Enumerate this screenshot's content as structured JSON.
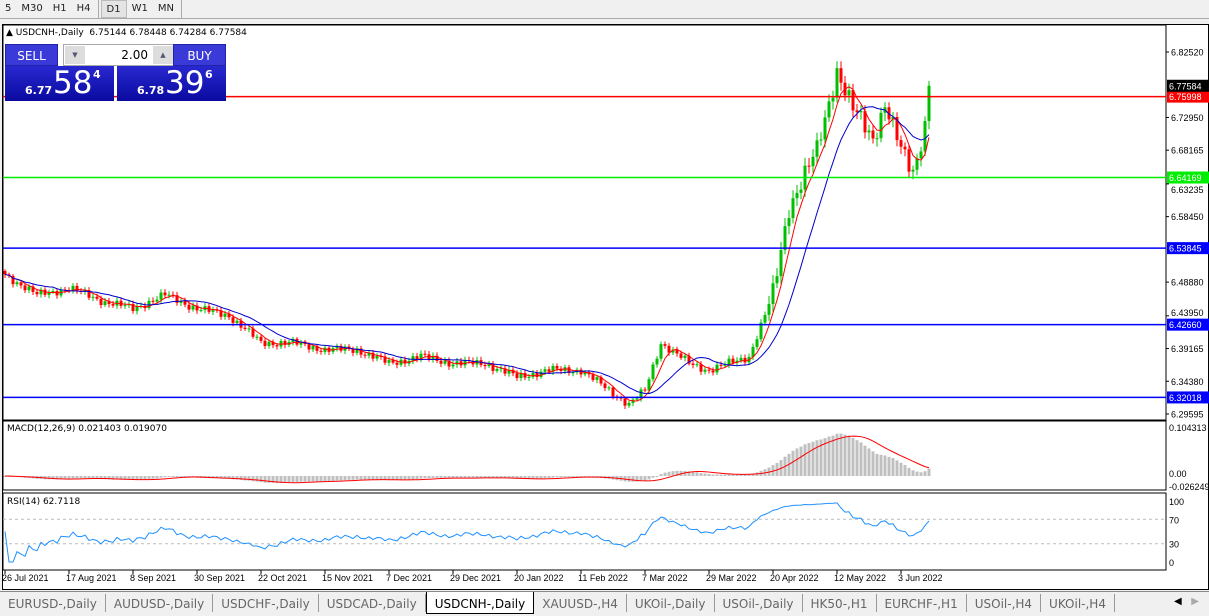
{
  "toolbar": {
    "timeframes": [
      "5",
      "M30",
      "H1",
      "H4",
      "D1",
      "W1",
      "MN"
    ],
    "active": "D1"
  },
  "header": {
    "symbol_line": "USDCNH-,Daily  6.75144 6.78448 6.74284 6.77584"
  },
  "trade_panel": {
    "sell_label": "SELL",
    "buy_label": "BUY",
    "lot": "2.00",
    "sell_small": "6.77",
    "sell_big": "58",
    "sell_sup": "4",
    "buy_small": "6.78",
    "buy_big": "39",
    "buy_sup": "6"
  },
  "price_axis": {
    "ticks": [
      "6.82520",
      "6.72950",
      "6.68165",
      "6.63235",
      "6.58450",
      "6.48880",
      "6.43950",
      "6.39165",
      "6.34380",
      "6.29595"
    ],
    "current_price": "6.77584"
  },
  "hlines": [
    {
      "price": "6.75998",
      "color": "#ff0000"
    },
    {
      "price": "6.64169",
      "color": "#00ee00"
    },
    {
      "price": "6.53845",
      "color": "#0000ff"
    },
    {
      "price": "6.42660",
      "color": "#0000ff"
    },
    {
      "price": "6.32018",
      "color": "#0000ff"
    }
  ],
  "macd": {
    "label": "MACD(12,26,9) 0.021403 0.019070",
    "axis": [
      "0.104313",
      "0.00",
      "-0.026249"
    ]
  },
  "rsi": {
    "label": "RSI(14) 62.7118",
    "axis": [
      "100",
      "70",
      "30",
      "0"
    ]
  },
  "time_axis": [
    "26 Jul 2021",
    "17 Aug 2021",
    "8 Sep 2021",
    "30 Sep 2021",
    "22 Oct 2021",
    "15 Nov 2021",
    "7 Dec 2021",
    "29 Dec 2021",
    "20 Jan 2022",
    "11 Feb 2022",
    "7 Mar 2022",
    "29 Mar 2022",
    "20 Apr 2022",
    "12 May 2022",
    "3 Jun 2022"
  ],
  "tabs": [
    "EURUSD-,Daily",
    "AUDUSD-,Daily",
    "USDCHF-,Daily",
    "USDCAD-,Daily",
    "USDCNH-,Daily",
    "XAUUSD-,H4",
    "UKOil-,Daily",
    "USOil-,Daily",
    "HK50-,H1",
    "EURCHF-,H1",
    "USOil-,H4",
    "UKOil-,H4"
  ],
  "active_tab": "USDCNH-,Daily",
  "colors": {
    "bull": "#00c000",
    "bear": "#ff0000",
    "fast_ma": "#ff0000",
    "slow_ma": "#0000cc",
    "rsi": "#1e90ff",
    "macd_hist": "#c0c0c0",
    "macd_signal": "#ff0000"
  },
  "chart_data": {
    "type": "candlestick",
    "symbol": "USDCNH",
    "timeframe": "Daily",
    "closes": [
      [
        "2021-07-26",
        6.5
      ],
      [
        "2021-08-05",
        6.47
      ],
      [
        "2021-08-17",
        6.48
      ],
      [
        "2021-08-30",
        6.46
      ],
      [
        "2021-09-08",
        6.45
      ],
      [
        "2021-09-20",
        6.47
      ],
      [
        "2021-09-30",
        6.45
      ],
      [
        "2021-10-12",
        6.44
      ],
      [
        "2021-10-22",
        6.4
      ],
      [
        "2021-11-03",
        6.4
      ],
      [
        "2021-11-15",
        6.39
      ],
      [
        "2021-11-25",
        6.39
      ],
      [
        "2021-12-07",
        6.37
      ],
      [
        "2021-12-17",
        6.38
      ],
      [
        "2021-12-29",
        6.37
      ],
      [
        "2022-01-10",
        6.37
      ],
      [
        "2022-01-20",
        6.35
      ],
      [
        "2022-02-01",
        6.36
      ],
      [
        "2022-02-11",
        6.36
      ],
      [
        "2022-03-01",
        6.31
      ],
      [
        "2022-03-07",
        6.33
      ],
      [
        "2022-03-11",
        6.4
      ],
      [
        "2022-03-22",
        6.37
      ],
      [
        "2022-03-29",
        6.36
      ],
      [
        "2022-04-12",
        6.38
      ],
      [
        "2022-04-20",
        6.47
      ],
      [
        "2022-04-26",
        6.6
      ],
      [
        "2022-05-05",
        6.68
      ],
      [
        "2022-05-12",
        6.8
      ],
      [
        "2022-05-18",
        6.74
      ],
      [
        "2022-05-25",
        6.7
      ],
      [
        "2022-05-30",
        6.75
      ],
      [
        "2022-06-03",
        6.68
      ],
      [
        "2022-06-08",
        6.65
      ],
      [
        "2022-06-13",
        6.72
      ],
      [
        "2022-06-14",
        6.77584
      ]
    ],
    "ylim": [
      6.29595,
      6.8252
    ]
  }
}
